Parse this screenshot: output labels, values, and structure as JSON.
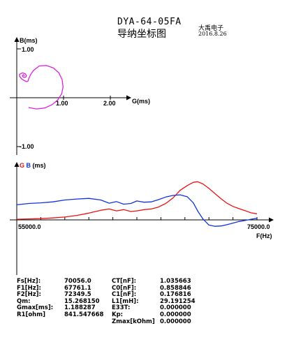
{
  "header": {
    "title": "DYA-64-05FA",
    "subtitle": "导纳坐标图",
    "company": "大禹电子",
    "date": "2016.8.26"
  },
  "admittance_plot": {
    "ylabel": "B(ms)",
    "xlabel": "G(ms)",
    "yticks": [
      "1.00",
      "-1.00"
    ],
    "xticks": [
      "1.00",
      "2.00"
    ],
    "curve_color": "#e020e0"
  },
  "frequency_plot": {
    "ylabel_g": "G",
    "ylabel_b": "B",
    "ylabel_unit": "(ms)",
    "x_start_label": "55000.0",
    "x_end_label": "75000.0",
    "xlabel": "F(Hz)",
    "g_color": "#ee1111",
    "b_color": "#1133dd"
  },
  "params": [
    {
      "l1": "Fs[Hz]:",
      "v1": "70056.0",
      "l2": "CT[nF]:",
      "v2": "1.035663"
    },
    {
      "l1": "F1[Hz]:",
      "v1": "67761.1",
      "l2": "C0[nF]:",
      "v2": "0.858846"
    },
    {
      "l1": "F2[Hz]:",
      "v1": "72349.5",
      "l2": "C1[nF]:",
      "v2": "0.176816"
    },
    {
      "l1": "Qm:",
      "v1": "15.268150",
      "l2": "L1[mH]:",
      "v2": "29.191254"
    },
    {
      "l1": "Gmax[ms]:",
      "v1": "1.188287",
      "l2": "E33T:",
      "v2": "0.000000"
    },
    {
      "l1": "R1[ohm]",
      "v1": "841.547668",
      "l2": "Kp:",
      "v2": "0.000000"
    },
    {
      "l1": "",
      "v1": "",
      "l2": "Zmax[kOhm]",
      "v2": "0.000000"
    }
  ],
  "chart_data": [
    {
      "type": "line",
      "xlabel": "G(ms)",
      "ylabel": "B(ms)",
      "xlim": [
        -0.22,
        2.6
      ],
      "ylim": [
        -1.1,
        1.1
      ],
      "x_ticks": [
        1.0,
        2.0
      ],
      "y_ticks": [
        1.0,
        -1.0
      ],
      "series": [
        {
          "x": [
            0.25,
            0.42,
            0.6,
            0.76,
            0.88,
            0.96,
            0.99,
            0.97,
            0.9,
            0.78,
            0.63,
            0.48,
            0.36,
            0.3,
            0.26,
            0.24,
            0.21,
            0.16,
            0.1,
            0.06,
            0.06,
            0.12,
            0.18,
            0.21,
            0.19,
            0.14,
            0.12,
            0.14,
            0.17
          ],
          "y": [
            -0.2,
            -0.23,
            -0.21,
            -0.14,
            -0.04,
            0.08,
            0.22,
            0.37,
            0.51,
            0.61,
            0.66,
            0.65,
            0.56,
            0.48,
            0.4,
            0.34,
            0.33,
            0.35,
            0.39,
            0.44,
            0.48,
            0.51,
            0.49,
            0.45,
            0.42,
            0.42,
            0.45,
            0.47,
            0.45
          ]
        }
      ]
    },
    {
      "type": "line",
      "xlabel": "F(Hz)",
      "ylabel": "G B (ms)",
      "xlim": [
        55000.0,
        75000.0
      ],
      "x_ticks": [
        55000.0,
        75000.0
      ],
      "ylim": [
        -1.0,
        1.5
      ],
      "series": [
        {
          "name": "G",
          "x": [
            55000,
            56000,
            57000,
            58000,
            59000,
            60000,
            61000,
            62000,
            62700,
            63300,
            63900,
            64500,
            65000,
            65600,
            66200,
            66800,
            67400,
            68000,
            68600,
            69200,
            69700,
            70056,
            70500,
            71000,
            71500,
            72000,
            72500,
            73000,
            73500,
            74000,
            74500,
            75000
          ],
          "y": [
            0.02,
            0.03,
            0.04,
            0.06,
            0.09,
            0.14,
            0.21,
            0.3,
            0.34,
            0.28,
            0.32,
            0.26,
            0.28,
            0.32,
            0.34,
            0.4,
            0.51,
            0.68,
            0.92,
            1.07,
            1.17,
            1.19,
            1.12,
            0.98,
            0.82,
            0.66,
            0.52,
            0.42,
            0.35,
            0.29,
            0.22,
            0.19
          ]
        },
        {
          "name": "B",
          "x": [
            55000,
            56000,
            57000,
            58000,
            59000,
            60000,
            61000,
            62000,
            62700,
            63300,
            63900,
            64500,
            65000,
            65600,
            66200,
            66800,
            67400,
            68000,
            68600,
            69200,
            69700,
            70056,
            70500,
            71000,
            71500,
            72000,
            72500,
            73000,
            73500,
            74000,
            74500,
            75000
          ],
          "y": [
            0.47,
            0.51,
            0.53,
            0.56,
            0.62,
            0.65,
            0.67,
            0.62,
            0.52,
            0.57,
            0.49,
            0.51,
            0.59,
            0.55,
            0.56,
            0.63,
            0.71,
            0.76,
            0.78,
            0.72,
            0.53,
            0.28,
            0.03,
            -0.16,
            -0.2,
            -0.19,
            -0.15,
            -0.1,
            -0.05,
            -0.02,
            0.02,
            0.05
          ]
        }
      ]
    }
  ]
}
